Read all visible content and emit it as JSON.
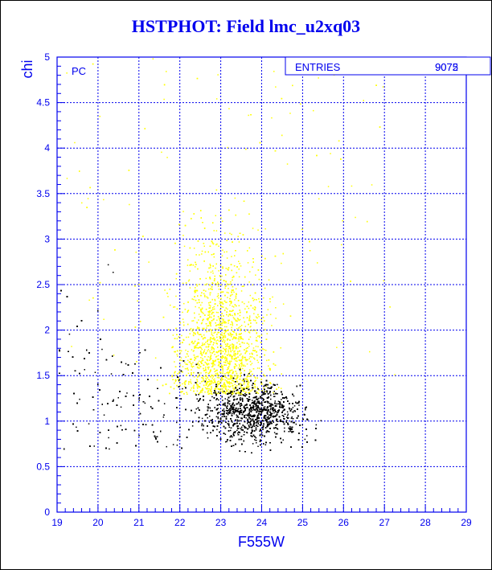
{
  "title": "HSTPHOT: Field lmc_u2xq03",
  "chart_data": {
    "type": "scatter",
    "title": "HSTPHOT: Field lmc_u2xq03",
    "xlabel": "F555W",
    "ylabel": "chi",
    "xlim": [
      19,
      29
    ],
    "ylim": [
      0,
      5
    ],
    "x_ticks": [
      "19",
      "20",
      "21",
      "22",
      "23",
      "24",
      "25",
      "26",
      "27",
      "28",
      "29"
    ],
    "y_ticks": [
      "0",
      "0.5",
      "1",
      "1.5",
      "2",
      "2.5",
      "3",
      "3.5",
      "4",
      "4.5",
      "5"
    ],
    "grid": true,
    "corner_label": "PC",
    "stats_box": {
      "label": "ENTRIES",
      "values": [
        "9075",
        "9072"
      ]
    },
    "series": [
      {
        "color": "#ffff00",
        "count_estimate": 3000,
        "distribution": {
          "x_range": [
            19.2,
            27.3
          ],
          "x_peak": 23.0,
          "y_range": [
            1.3,
            5.0
          ],
          "y_peak": 2.2
        }
      },
      {
        "color": "#000000",
        "count_estimate": 6000,
        "distribution": {
          "x_range": [
            19.0,
            26.1
          ],
          "x_peak": 23.8,
          "y_range": [
            0.45,
            2.8
          ],
          "y_peak": 1.1
        }
      }
    ],
    "colors": {
      "axis": "#0000ee",
      "grid": "#0000ee",
      "title": "#0000ee"
    }
  }
}
